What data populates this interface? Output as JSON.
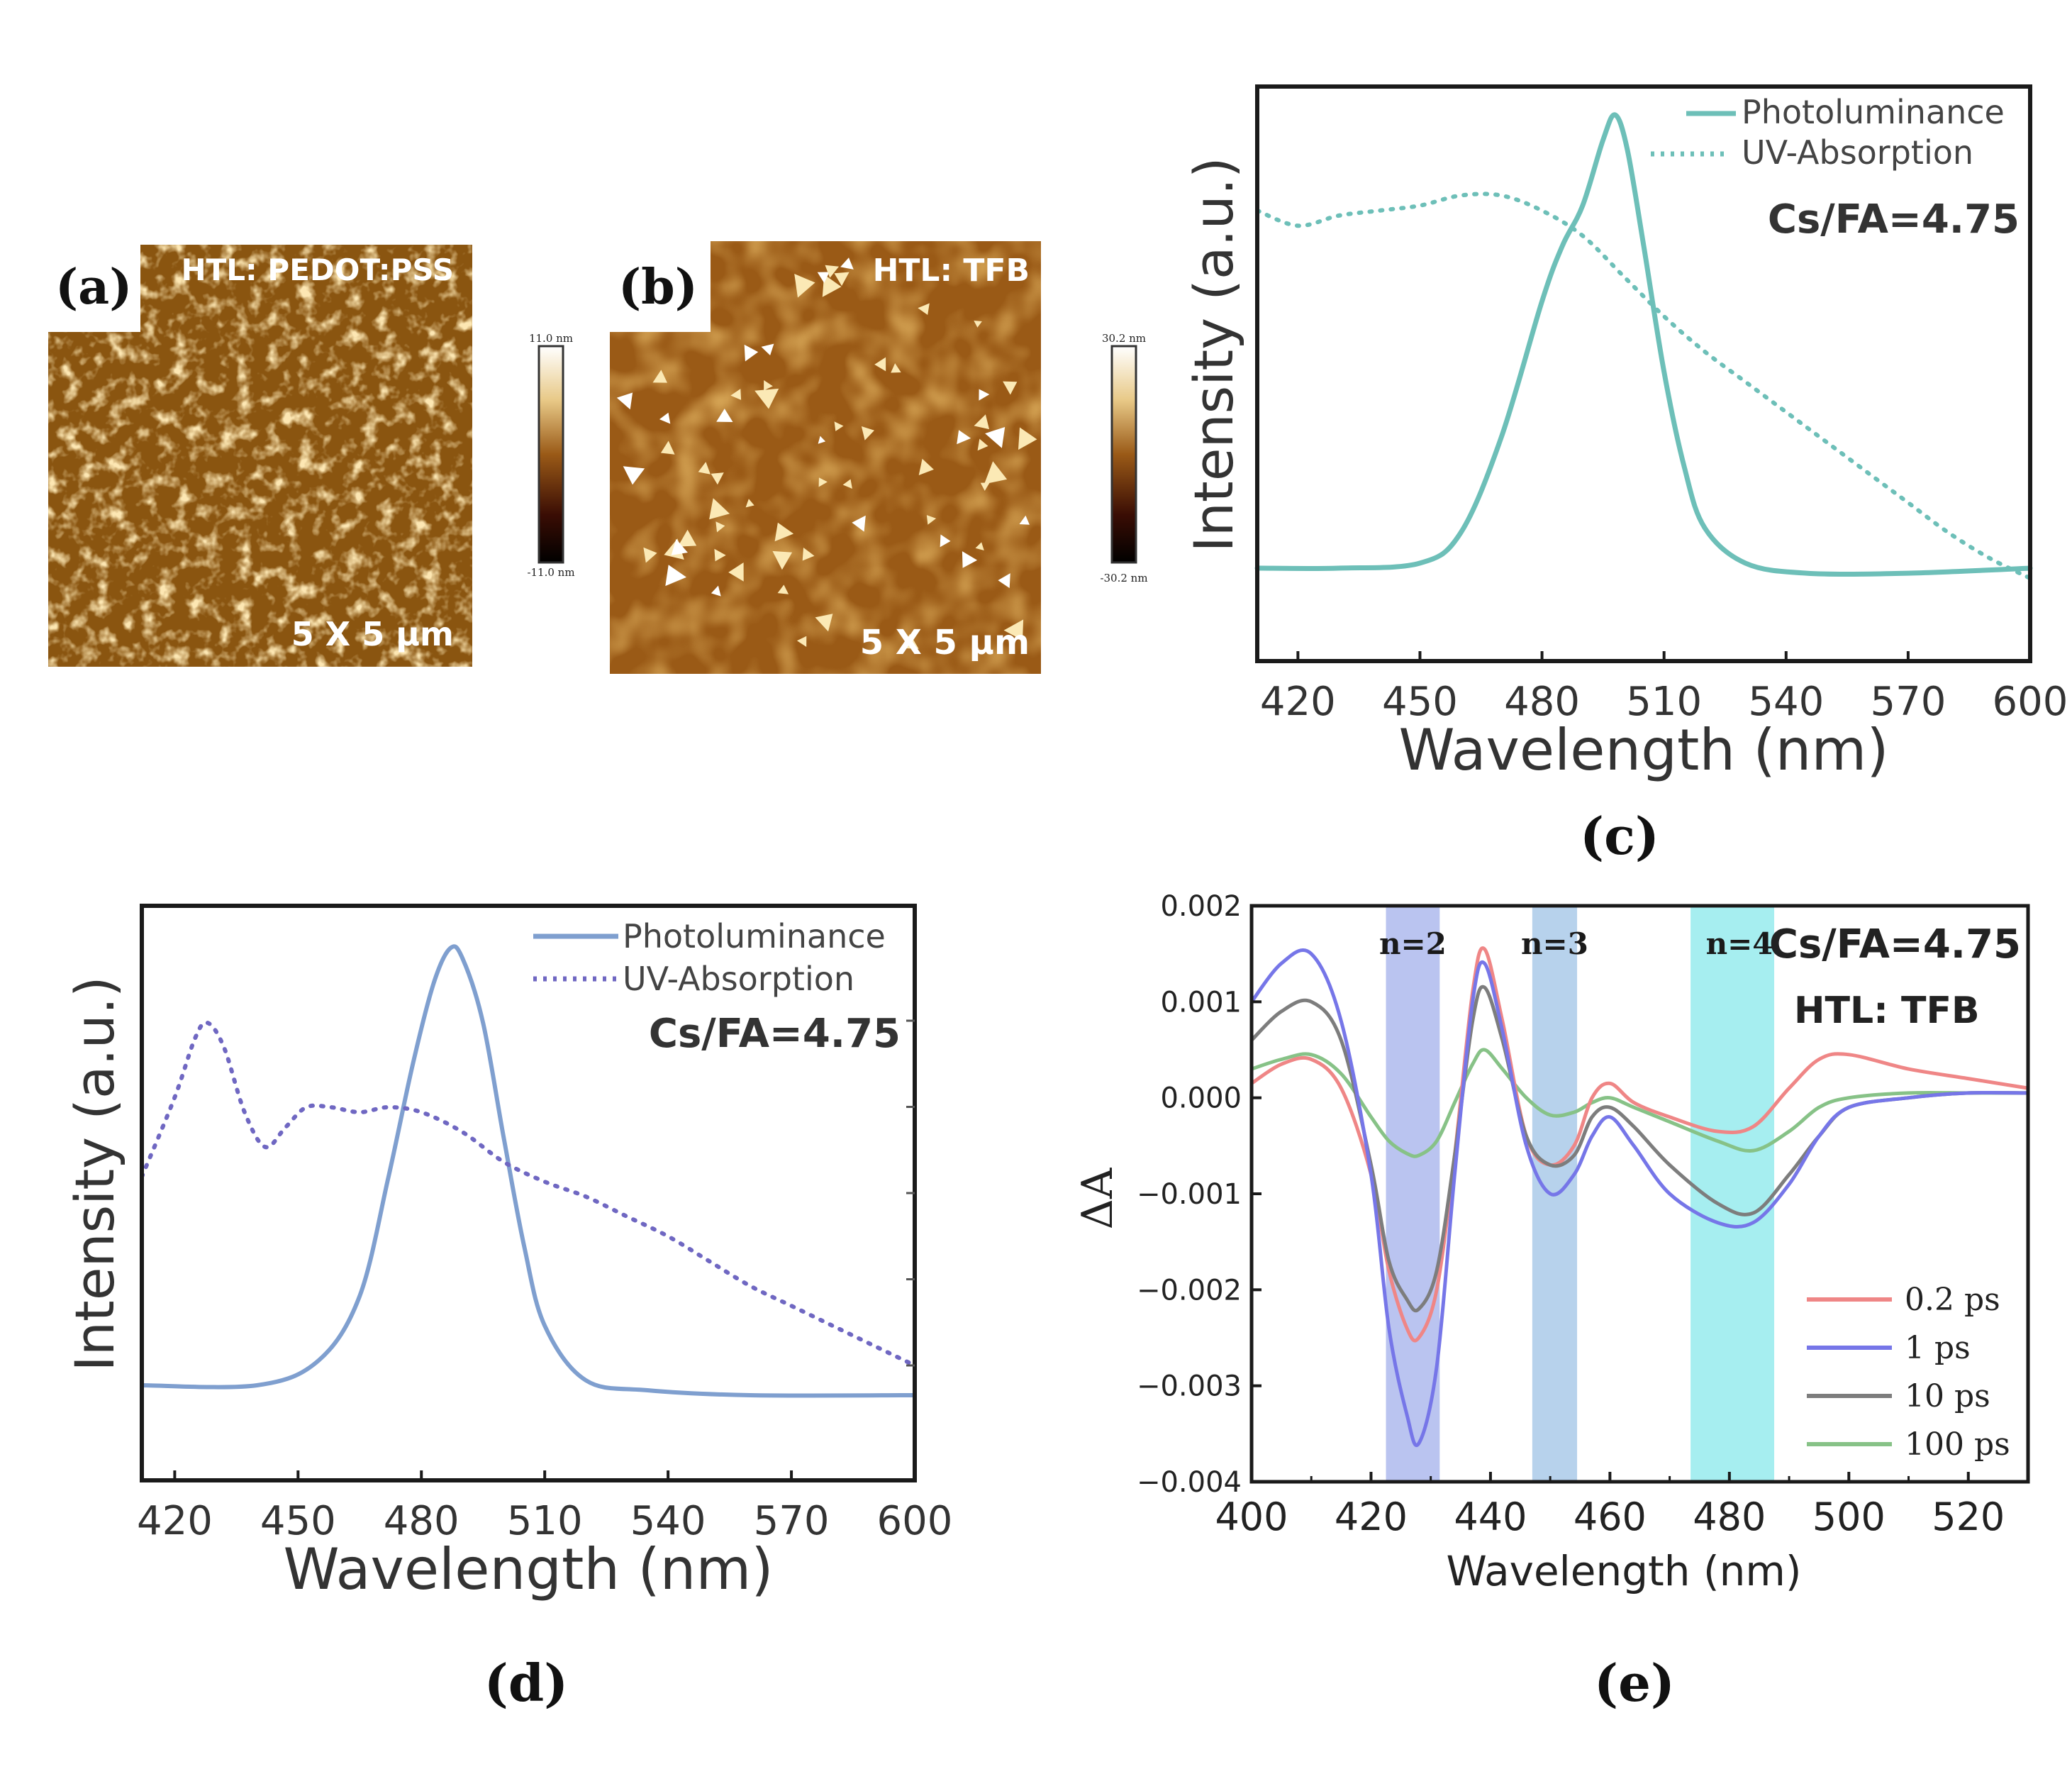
{
  "colors": {
    "c_pl": "#6dbfb8",
    "d_pl": "#7f9fcf",
    "d_abs": "#6f67c2",
    "e_02": "#ef8686",
    "e_1": "#7676e8",
    "e_10": "#7d7d7d",
    "e_100": "#87c287",
    "band_n2": "#8f9fe6",
    "band_n3": "#8ab6e0",
    "band_n4": "#6fe3e6",
    "afm_base": "#8a5510"
  },
  "afm": {
    "a": {
      "letter": "(a)",
      "title": "HTL: PEDOT:PSS",
      "scale": "5 X 5 μm",
      "bar_top": "11.0 nm",
      "bar_bottom": "-11.0 nm"
    },
    "b": {
      "letter": "(b)",
      "title": "HTL: TFB",
      "scale": "5 X 5 μm",
      "bar_top": "30.2 nm",
      "bar_bottom": "-30.2 nm"
    }
  },
  "chart_data": [
    {
      "id": "c",
      "type": "line",
      "panel_label": "(c)",
      "xlabel": "Wavelength (nm)",
      "ylabel": "Intensity (a.u.)",
      "xlim": [
        410,
        600
      ],
      "ylim": [
        0,
        1
      ],
      "xticks": [
        "420",
        "450",
        "480",
        "510",
        "540",
        "570",
        "600"
      ],
      "annotation": "Cs/FA=4.75",
      "legend": [
        "Photoluminance",
        "UV-Absorption"
      ],
      "series": [
        {
          "name": "Photoluminance",
          "style": "solid",
          "x": [
            410,
            430,
            450,
            460,
            470,
            480,
            485,
            490,
            495,
            498,
            501,
            505,
            510,
            515,
            520,
            530,
            545,
            570,
            600
          ],
          "y": [
            0.1,
            0.1,
            0.11,
            0.17,
            0.36,
            0.63,
            0.74,
            0.82,
            0.95,
            1.0,
            0.93,
            0.74,
            0.49,
            0.3,
            0.18,
            0.11,
            0.09,
            0.09,
            0.1
          ]
        },
        {
          "name": "UV-Absorption",
          "style": "dotted",
          "x": [
            410,
            420,
            430,
            440,
            450,
            460,
            470,
            480,
            490,
            500,
            510,
            520,
            530,
            540,
            550,
            560,
            570,
            580,
            590,
            600
          ],
          "y": [
            0.81,
            0.78,
            0.8,
            0.81,
            0.82,
            0.84,
            0.84,
            0.81,
            0.76,
            0.68,
            0.6,
            0.53,
            0.47,
            0.41,
            0.35,
            0.29,
            0.23,
            0.17,
            0.12,
            0.08
          ]
        }
      ]
    },
    {
      "id": "d",
      "type": "line",
      "panel_label": "(d)",
      "xlabel": "Wavelength (nm)",
      "ylabel": "Intensity (a.u.)",
      "xlim": [
        412,
        600
      ],
      "ylim": [
        0,
        1
      ],
      "xticks": [
        "420",
        "450",
        "480",
        "510",
        "540",
        "570",
        "600"
      ],
      "annotation": "Cs/FA=4.75",
      "legend": [
        "Photoluminance",
        "UV-Absorption"
      ],
      "series": [
        {
          "name": "Photoluminance",
          "style": "solid",
          "x": [
            412,
            440,
            455,
            465,
            472,
            478,
            483,
            487,
            490,
            495,
            500,
            505,
            510,
            520,
            535,
            560,
            600
          ],
          "y": [
            0.12,
            0.12,
            0.17,
            0.3,
            0.54,
            0.77,
            0.93,
            1.0,
            0.98,
            0.85,
            0.62,
            0.4,
            0.24,
            0.13,
            0.11,
            0.1,
            0.1
          ]
        },
        {
          "name": "UV-Absorption",
          "style": "dotted",
          "x": [
            412,
            420,
            425,
            428,
            432,
            437,
            442,
            447,
            452,
            458,
            465,
            472,
            480,
            490,
            500,
            510,
            520,
            530,
            540,
            550,
            560,
            570,
            580,
            590,
            600
          ],
          "y": [
            0.54,
            0.7,
            0.82,
            0.85,
            0.8,
            0.67,
            0.6,
            0.64,
            0.68,
            0.68,
            0.67,
            0.68,
            0.67,
            0.63,
            0.57,
            0.53,
            0.5,
            0.46,
            0.42,
            0.37,
            0.32,
            0.28,
            0.24,
            0.2,
            0.16
          ]
        }
      ]
    },
    {
      "id": "e",
      "type": "line",
      "panel_label": "(e)",
      "xlabel": "Wavelength (nm)",
      "ylabel": "ΔA",
      "xlim": [
        400,
        530
      ],
      "ylim": [
        -0.004,
        0.002
      ],
      "xticks": [
        "400",
        "420",
        "440",
        "460",
        "480",
        "500",
        "520"
      ],
      "yticks": [
        "0.002",
        "0.001",
        "0.000",
        "−0.001",
        "−0.002",
        "−0.003",
        "−0.004"
      ],
      "annotations": [
        "Cs/FA=4.75",
        "HTL: TFB"
      ],
      "bands": [
        {
          "label": "n=2",
          "from": 422.5,
          "to": 431.5
        },
        {
          "label": "n=3",
          "from": 447,
          "to": 454.5
        },
        {
          "label": "n=4",
          "from": 473.5,
          "to": 487.5
        }
      ],
      "legend": [
        "0.2 ps",
        "1 ps",
        "10 ps",
        "100 ps"
      ],
      "series": [
        {
          "name": "0.2 ps",
          "x": [
            400,
            405,
            410,
            415,
            420,
            423,
            426,
            428,
            431,
            434,
            437,
            439,
            442,
            446,
            450,
            454,
            457,
            460,
            464,
            470,
            478,
            484,
            490,
            495,
            500,
            510,
            520,
            530
          ],
          "y": [
            0.00015,
            0.00035,
            0.0004,
            0.0001,
            -0.0008,
            -0.0018,
            -0.0024,
            -0.0025,
            -0.002,
            -0.0006,
            0.0011,
            0.00155,
            0.0008,
            -0.0004,
            -0.0007,
            -0.0005,
            0.0,
            0.00015,
            -5e-05,
            -0.0002,
            -0.00035,
            -0.0003,
            0.0001,
            0.0004,
            0.00045,
            0.0003,
            0.0002,
            0.0001
          ]
        },
        {
          "name": "1 ps",
          "x": [
            400,
            405,
            410,
            415,
            420,
            423,
            426,
            428,
            431,
            434,
            437,
            439,
            442,
            446,
            450,
            454,
            457,
            460,
            464,
            470,
            478,
            484,
            490,
            495,
            500,
            510,
            520,
            530
          ],
          "y": [
            0.001,
            0.0014,
            0.0015,
            0.0008,
            -0.0008,
            -0.0024,
            -0.0033,
            -0.0036,
            -0.0028,
            -0.0008,
            0.001,
            0.0014,
            0.0007,
            -0.0005,
            -0.001,
            -0.0008,
            -0.0004,
            -0.0002,
            -0.0005,
            -0.001,
            -0.0013,
            -0.0013,
            -0.0009,
            -0.0004,
            -0.0001,
            0.0,
            5e-05,
            5e-05
          ]
        },
        {
          "name": "10 ps",
          "x": [
            400,
            405,
            410,
            415,
            420,
            423,
            426,
            428,
            431,
            434,
            437,
            439,
            442,
            446,
            450,
            454,
            457,
            460,
            464,
            470,
            478,
            484,
            490,
            495,
            500,
            510,
            520,
            530
          ],
          "y": [
            0.0006,
            0.0009,
            0.001,
            0.0006,
            -0.0007,
            -0.0017,
            -0.0021,
            -0.0022,
            -0.0018,
            -0.0006,
            0.0008,
            0.00115,
            0.0006,
            -0.0004,
            -0.0007,
            -0.0006,
            -0.0002,
            -0.0001,
            -0.0003,
            -0.0007,
            -0.0011,
            -0.0012,
            -0.0008,
            -0.0004,
            -0.0001,
            0.0,
            5e-05,
            5e-05
          ]
        },
        {
          "name": "100 ps",
          "x": [
            400,
            405,
            410,
            415,
            420,
            423,
            426,
            428,
            431,
            434,
            437,
            439,
            442,
            446,
            450,
            454,
            457,
            460,
            464,
            470,
            478,
            484,
            490,
            495,
            500,
            510,
            520,
            530
          ],
          "y": [
            0.0003,
            0.0004,
            0.00045,
            0.00025,
            -0.0002,
            -0.00045,
            -0.00058,
            -0.0006,
            -0.00045,
            -5e-05,
            0.00035,
            0.0005,
            0.0003,
            0.0,
            -0.00018,
            -0.00015,
            -5e-05,
            0.0,
            -0.0001,
            -0.00025,
            -0.00045,
            -0.00055,
            -0.00035,
            -0.0001,
            0.0,
            5e-05,
            5e-05,
            5e-05
          ]
        }
      ]
    }
  ]
}
